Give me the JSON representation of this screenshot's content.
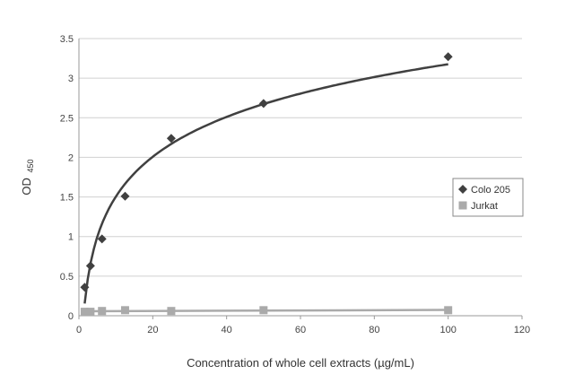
{
  "chart_data": {
    "type": "scatter",
    "xlabel": "Concentration of whole cell extracts (µg/mL)",
    "ylabel_main": "OD",
    "ylabel_sub": "450",
    "xlim": [
      0,
      120
    ],
    "ylim": [
      0,
      3.5
    ],
    "x_ticks": [
      0,
      20,
      40,
      60,
      80,
      100,
      120
    ],
    "y_ticks": [
      0,
      0.5,
      1,
      1.5,
      2,
      2.5,
      3,
      3.5
    ],
    "grid": "horizontal",
    "legend_position": "right",
    "series": [
      {
        "name": "Colo 205",
        "marker": "diamond",
        "color": "#404040",
        "x": [
          1.56,
          3.125,
          6.25,
          12.5,
          25,
          50,
          100
        ],
        "y": [
          0.36,
          0.63,
          0.97,
          1.51,
          2.24,
          2.68,
          3.27
        ],
        "fit": "logarithmic"
      },
      {
        "name": "Jurkat",
        "marker": "square",
        "color": "#aaaaaa",
        "x": [
          1.56,
          3.125,
          6.25,
          12.5,
          25,
          50,
          100
        ],
        "y": [
          0.05,
          0.05,
          0.06,
          0.07,
          0.06,
          0.07,
          0.07
        ],
        "fit": "linear"
      }
    ]
  }
}
